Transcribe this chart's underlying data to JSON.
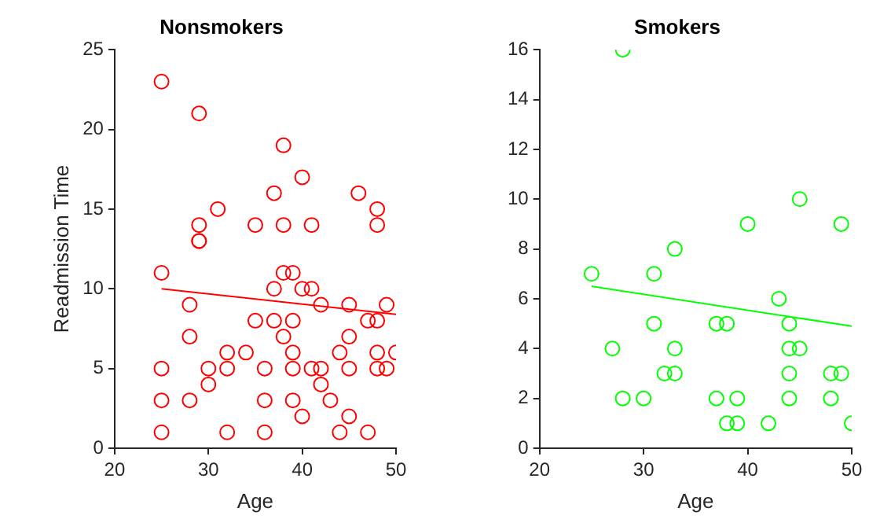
{
  "chart_data": [
    {
      "type": "scatter",
      "title": "Nonsmokers",
      "xlabel": "Age",
      "ylabel": "Readmission Time",
      "xlim": [
        20,
        50
      ],
      "xticks": [
        20,
        30,
        40,
        50
      ],
      "ylim": [
        0,
        25
      ],
      "yticks": [
        0,
        5,
        10,
        15,
        20,
        25
      ],
      "grid": false,
      "legend": false,
      "marker": "circle",
      "series": [
        {
          "color": "#ff0000",
          "x": [
            25,
            29,
            29,
            29,
            31,
            35,
            37,
            38,
            38,
            40,
            41,
            46,
            48,
            48,
            25,
            28,
            28,
            25,
            25,
            25,
            28,
            29,
            30,
            30,
            32,
            32,
            32,
            34,
            35,
            36,
            36,
            36,
            37,
            37,
            38,
            38,
            39,
            39,
            39,
            39,
            39,
            40,
            40,
            41,
            41,
            42,
            42,
            42,
            43,
            44,
            44,
            45,
            45,
            45,
            45,
            47,
            47,
            48,
            48,
            48,
            49,
            49,
            50
          ],
          "values": [
            23,
            21,
            14,
            13,
            15,
            14,
            16,
            19,
            14,
            17,
            14,
            16,
            15,
            14,
            11,
            9,
            7,
            5,
            3,
            1,
            3,
            13,
            5,
            4,
            6,
            5,
            1,
            6,
            8,
            5,
            3,
            1,
            10,
            8,
            11,
            7,
            11,
            8,
            6,
            5,
            3,
            10,
            2,
            10,
            5,
            9,
            5,
            4,
            3,
            6,
            1,
            9,
            7,
            5,
            2,
            8,
            1,
            8,
            6,
            5,
            9,
            5,
            6
          ]
        },
        {
          "type": "line",
          "marker": "none",
          "color": "#ff0000",
          "x": [
            25,
            50
          ],
          "values": [
            10.0,
            8.4
          ]
        }
      ]
    },
    {
      "type": "scatter",
      "title": "Smokers",
      "xlabel": "Age",
      "xlim": [
        20,
        50
      ],
      "xticks": [
        20,
        30,
        40,
        50
      ],
      "ylim": [
        0,
        16
      ],
      "yticks": [
        0,
        2,
        4,
        6,
        8,
        10,
        12,
        14,
        16
      ],
      "grid": false,
      "legend": false,
      "marker": "circle",
      "series": [
        {
          "color": "#00ff00",
          "x": [
            25,
            27,
            28,
            30,
            31,
            31,
            32,
            33,
            33,
            33,
            37,
            38,
            37,
            39,
            38,
            39,
            42,
            43,
            44,
            44,
            45,
            44,
            44,
            48,
            49,
            48,
            50,
            28,
            40,
            45,
            49
          ],
          "values": [
            7,
            4,
            2,
            2,
            7,
            5,
            3,
            3,
            4,
            8,
            5,
            5,
            2,
            2,
            1,
            1,
            1,
            6,
            5,
            4,
            4,
            3,
            2,
            3,
            3,
            2,
            1,
            16,
            9,
            10,
            9
          ]
        },
        {
          "type": "line",
          "marker": "none",
          "color": "#00ff00",
          "x": [
            25,
            50
          ],
          "values": [
            6.5,
            4.9
          ]
        }
      ]
    }
  ]
}
